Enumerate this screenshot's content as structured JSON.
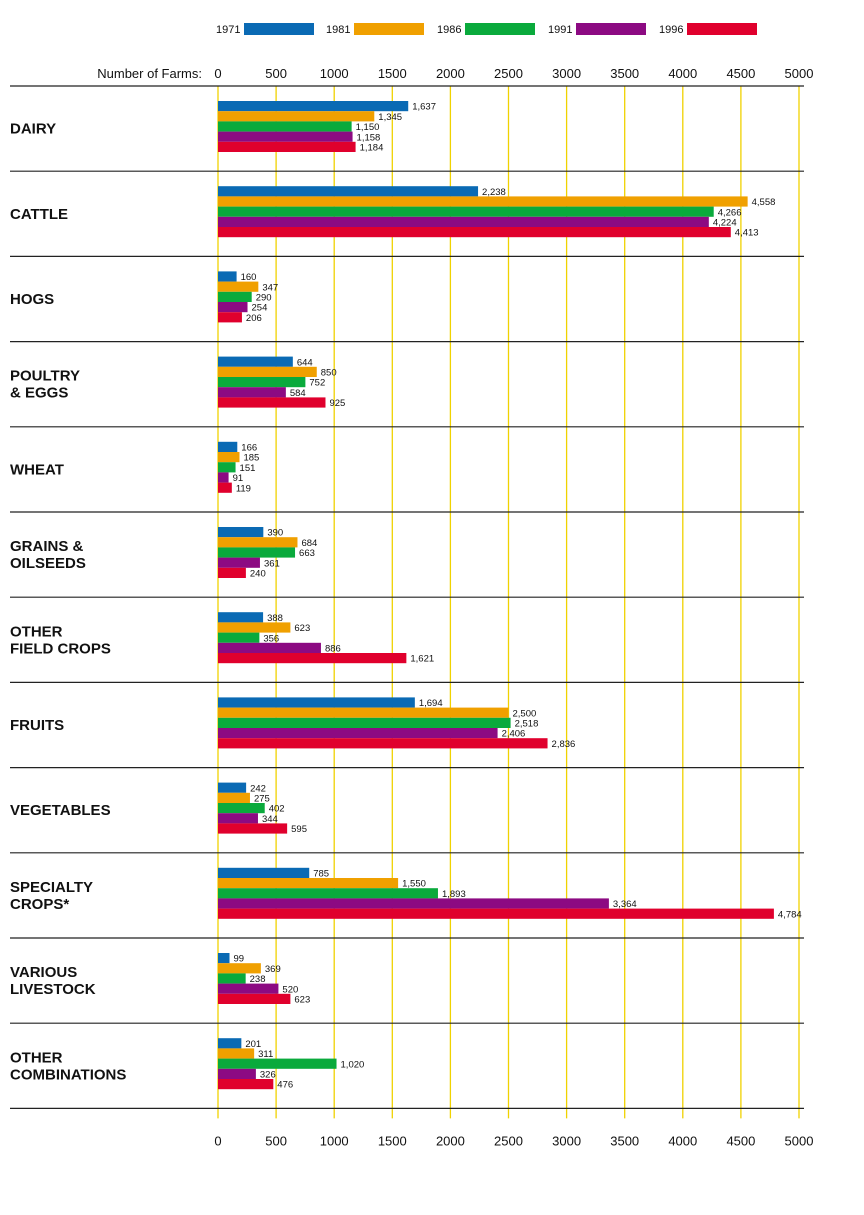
{
  "chart_data": {
    "type": "bar",
    "orientation": "horizontal",
    "xlabel": "Number of Farms:",
    "xlim": [
      0,
      5000
    ],
    "xticks": [
      "0",
      "500",
      "1000",
      "1500",
      "2000",
      "2500",
      "3000",
      "3500",
      "4000",
      "4500",
      "5000"
    ],
    "grid": true,
    "legend_position": "top",
    "categories": [
      [
        "DAIRY"
      ],
      [
        "CATTLE"
      ],
      [
        "HOGS"
      ],
      [
        "POULTRY",
        "& EGGS"
      ],
      [
        "WHEAT"
      ],
      [
        "GRAINS &",
        "OILSEEDS"
      ],
      [
        "OTHER",
        "FIELD CROPS"
      ],
      [
        "FRUITS"
      ],
      [
        "VEGETABLES"
      ],
      [
        "SPECIALTY",
        "CROPS*"
      ],
      [
        "VARIOUS",
        "LIVESTOCK"
      ],
      [
        "OTHER",
        "COMBINATIONS"
      ]
    ],
    "series": [
      {
        "name": "1971",
        "color": "#0a6ab4",
        "values": [
          1637,
          2238,
          160,
          644,
          166,
          390,
          388,
          1694,
          242,
          785,
          99,
          201
        ],
        "labels": [
          "1,637",
          "2,238",
          "160",
          "644",
          "166",
          "390",
          "388",
          "1,694",
          "242",
          "785",
          "99",
          "201"
        ]
      },
      {
        "name": "1981",
        "color": "#f0a000",
        "values": [
          1345,
          4558,
          347,
          850,
          185,
          684,
          623,
          2500,
          275,
          1550,
          369,
          311
        ],
        "labels": [
          "1,345",
          "4,558",
          "347",
          "850",
          "185",
          "684",
          "623",
          "2,500",
          "275",
          "1,550",
          "369",
          "311"
        ]
      },
      {
        "name": "1986",
        "color": "#0aaa3c",
        "values": [
          1150,
          4266,
          290,
          752,
          151,
          663,
          356,
          2518,
          402,
          1893,
          238,
          1020
        ],
        "labels": [
          "1,150",
          "4,266",
          "290",
          "752",
          "151",
          "663",
          "356",
          "2,518",
          "402",
          "1,893",
          "238",
          "1,020"
        ]
      },
      {
        "name": "1991",
        "color": "#8c0a82",
        "values": [
          1158,
          4224,
          254,
          584,
          91,
          361,
          886,
          2406,
          344,
          3364,
          520,
          326
        ],
        "labels": [
          "1,158",
          "4,224",
          "254",
          "584",
          "91",
          "361",
          "886",
          "2,406",
          "344",
          "3,364",
          "520",
          "326"
        ]
      },
      {
        "name": "1996",
        "color": "#e0002d",
        "values": [
          1184,
          4413,
          206,
          925,
          119,
          240,
          1621,
          2836,
          595,
          4784,
          623,
          476
        ],
        "labels": [
          "1,184",
          "4,413",
          "206",
          "925",
          "119",
          "240",
          "1,621",
          "2,836",
          "595",
          "4,784",
          "623",
          "476"
        ]
      }
    ],
    "colors": {
      "grid": "#f0d200",
      "divider": "#222222"
    }
  }
}
